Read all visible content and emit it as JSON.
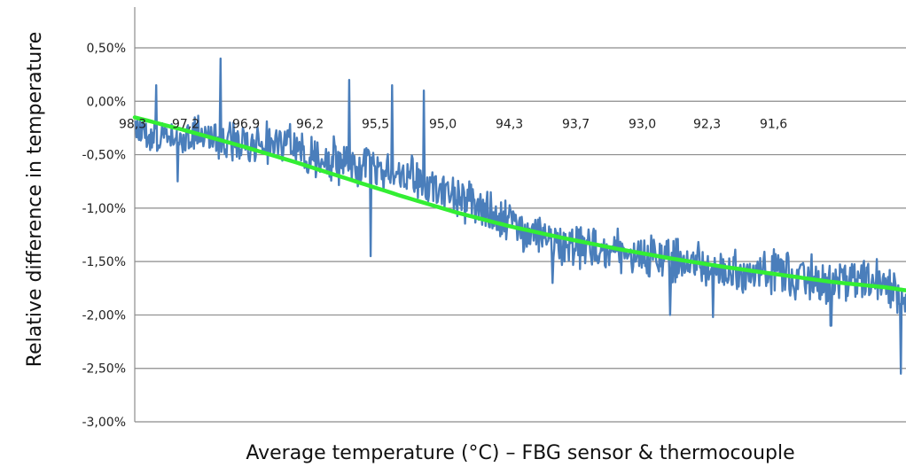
{
  "chart_data": {
    "type": "line",
    "title": "",
    "xlabel": "Average temperature (°C) – FBG sensor & thermocouple",
    "ylabel": "Relative difference  in temperature",
    "x_categories": [
      "98,3",
      "97,2",
      "96,9",
      "96,2",
      "95,5",
      "95,0",
      "94,3",
      "93,7",
      "93,0",
      "92,3",
      "91,6"
    ],
    "x_range": [
      98.3,
      91.1
    ],
    "y_ticks": [
      "0,50%",
      "0,00%",
      "-0,50%",
      "-1,00%",
      "-1,50%",
      "-2,00%",
      "-2,50%",
      "-3,00%"
    ],
    "ylim": [
      -3.0,
      0.5
    ],
    "grid": true,
    "legend": "none",
    "colors": {
      "measured": "#4a7ebb",
      "trend": "#33ee33",
      "grid": "#8c8c8c"
    },
    "series": [
      {
        "kind": "noisy-measurement",
        "x": [
          98.3,
          98.0,
          97.7,
          97.4,
          97.1,
          96.8,
          96.5,
          96.2,
          95.9,
          95.6,
          95.3,
          95.0,
          94.7,
          94.4,
          94.1,
          93.8,
          93.5,
          93.2,
          92.9,
          92.6,
          92.3,
          92.0,
          91.7,
          91.4,
          91.1
        ],
        "y": [
          -0.25,
          -0.35,
          -0.3,
          -0.4,
          -0.35,
          -0.45,
          -0.55,
          -0.6,
          -0.65,
          -0.75,
          -0.9,
          -1.05,
          -1.2,
          -1.3,
          -1.35,
          -1.4,
          -1.45,
          -1.5,
          -1.55,
          -1.6,
          -1.6,
          -1.65,
          -1.7,
          -1.7,
          -1.8
        ],
        "spikes": [
          {
            "x": 98.1,
            "y": 0.15
          },
          {
            "x": 97.9,
            "y": -0.75
          },
          {
            "x": 97.5,
            "y": 0.4
          },
          {
            "x": 96.3,
            "y": 0.2
          },
          {
            "x": 96.1,
            "y": -1.45
          },
          {
            "x": 95.9,
            "y": 0.15
          },
          {
            "x": 95.6,
            "y": 0.1
          },
          {
            "x": 94.4,
            "y": -1.7
          },
          {
            "x": 93.3,
            "y": -2.0
          },
          {
            "x": 92.9,
            "y": -2.02
          },
          {
            "x": 91.8,
            "y": -2.1
          },
          {
            "x": 91.15,
            "y": -2.55
          }
        ]
      },
      {
        "kind": "polynomial-trend",
        "x": [
          98.3,
          97.8,
          97.3,
          96.8,
          96.3,
          95.8,
          95.3,
          94.8,
          94.3,
          93.8,
          93.3,
          92.8,
          92.3,
          91.8,
          91.3,
          91.1
        ],
        "y": [
          -0.15,
          -0.28,
          -0.42,
          -0.57,
          -0.73,
          -0.89,
          -1.04,
          -1.17,
          -1.28,
          -1.38,
          -1.47,
          -1.55,
          -1.62,
          -1.69,
          -1.74,
          -1.77
        ]
      }
    ]
  }
}
